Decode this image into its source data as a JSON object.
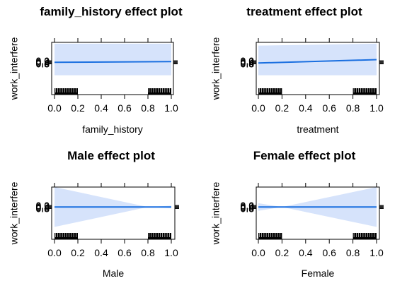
{
  "chart_data": [
    {
      "type": "line",
      "title": "family_history effect plot",
      "xlabel": "family_history",
      "ylabel": "work_interfere",
      "x_ticks": [
        "0.0",
        "0.2",
        "0.4",
        "0.6",
        "0.8",
        "1.0"
      ],
      "y_tick_labels": [
        "0.0",
        "0.2",
        "0.4",
        "0.6",
        "0.8"
      ],
      "xlim": [
        0,
        1
      ],
      "ylim": [
        -1.7,
        1.05
      ],
      "effect_line": {
        "x": [
          0,
          1
        ],
        "y": [
          0.0,
          0.04
        ]
      },
      "confidence_band": {
        "x": [
          0,
          1
        ],
        "lower": [
          -0.68,
          -0.68
        ],
        "upper": [
          0.98,
          0.98
        ]
      },
      "rug_clusters": [
        [
          0.0,
          0.2
        ],
        [
          0.8,
          1.0
        ]
      ],
      "line_color": "#1a6fe0",
      "band_color": "#d6e3fb"
    },
    {
      "type": "line",
      "title": "treatment effect plot",
      "xlabel": "treatment",
      "ylabel": "work_interfere",
      "x_ticks": [
        "0.0",
        "0.2",
        "0.4",
        "0.6",
        "0.8",
        "1.0"
      ],
      "y_tick_labels": [
        "0.0",
        "0.2",
        "0.4",
        "0.6",
        "0.8"
      ],
      "xlim": [
        0,
        1
      ],
      "ylim": [
        -1.7,
        1.05
      ],
      "effect_line": {
        "x": [
          0,
          1
        ],
        "y": [
          -0.04,
          0.14
        ]
      },
      "confidence_band": {
        "x": [
          0,
          1
        ],
        "lower": [
          -0.68,
          -0.68
        ],
        "upper": [
          0.88,
          0.98
        ]
      },
      "rug_clusters": [
        [
          0.0,
          0.2
        ],
        [
          0.8,
          1.0
        ]
      ],
      "line_color": "#1a6fe0",
      "band_color": "#d6e3fb"
    },
    {
      "type": "line",
      "title": "Male effect plot",
      "xlabel": "Male",
      "ylabel": "work_interfere",
      "x_ticks": [
        "0.0",
        "0.2",
        "0.4",
        "0.6",
        "0.8",
        "1.0"
      ],
      "y_tick_labels": [
        "0.0",
        "0.2",
        "0.4",
        "0.6",
        "0.8"
      ],
      "xlim": [
        0,
        1
      ],
      "ylim": [
        -1.7,
        1.05
      ],
      "effect_line": {
        "x": [
          0,
          1
        ],
        "y": [
          0.0,
          0.0
        ]
      },
      "confidence_band": {
        "x": [
          0,
          0.8,
          1
        ],
        "lower": [
          -1.05,
          0.0,
          -0.07
        ],
        "upper": [
          1.05,
          0.0,
          0.07
        ]
      },
      "rug_clusters": [
        [
          0.0,
          0.2
        ],
        [
          0.8,
          1.0
        ]
      ],
      "line_color": "#1a6fe0",
      "band_color": "#d6e3fb"
    },
    {
      "type": "line",
      "title": "Female effect plot",
      "xlabel": "Female",
      "ylabel": "work_interfere",
      "x_ticks": [
        "0.0",
        "0.2",
        "0.4",
        "0.6",
        "0.8",
        "1.0"
      ],
      "y_tick_labels": [
        "0.0",
        "0.2",
        "0.4",
        "0.6",
        "0.8"
      ],
      "xlim": [
        0,
        1
      ],
      "ylim": [
        -1.7,
        1.05
      ],
      "effect_line": {
        "x": [
          0,
          1
        ],
        "y": [
          0.0,
          0.0
        ]
      },
      "confidence_band": {
        "x": [
          0,
          0.2,
          1
        ],
        "lower": [
          -0.2,
          0.0,
          -1.05
        ],
        "upper": [
          0.2,
          0.0,
          1.05
        ]
      },
      "rug_clusters": [
        [
          0.0,
          0.2
        ],
        [
          0.8,
          1.0
        ]
      ],
      "line_color": "#1a6fe0",
      "band_color": "#d6e3fb"
    }
  ]
}
